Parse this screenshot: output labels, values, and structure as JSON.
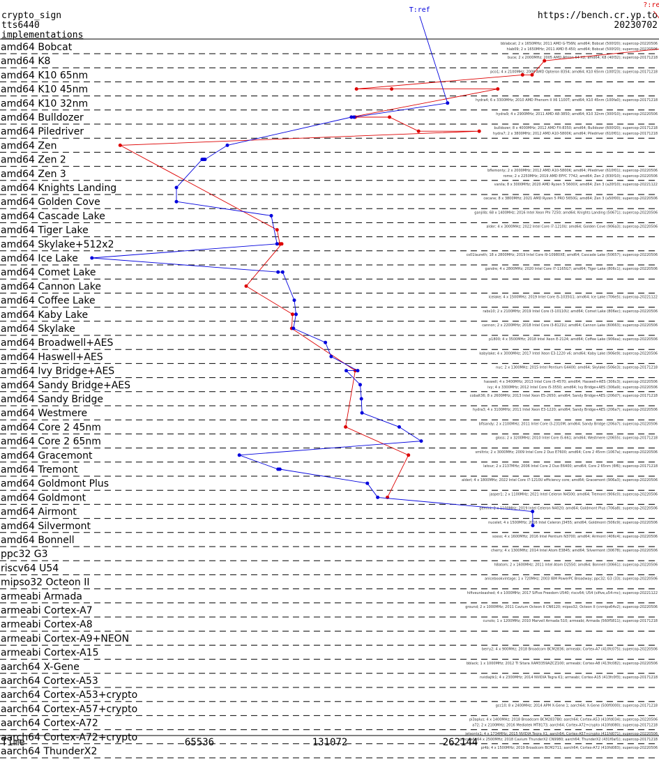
{
  "header": {
    "line1": "crypto_sign",
    "line2": "tts6440",
    "line3": "implementations",
    "url": "https://bench.cr.yp.to",
    "date": "20230702"
  },
  "colors": {
    "series_blue": "#0000dd",
    "series_red": "#dd0000",
    "separator": "#000000"
  },
  "chart_data": {
    "type": "line",
    "scale": "log2",
    "xlabel": "Time",
    "xticks": [
      65536,
      131072,
      262144
    ],
    "xtick_labels": [
      "65536",
      "131072",
      "262144"
    ],
    "grid": false,
    "series": [
      {
        "name": "T:ref",
        "color": "#0000dd"
      },
      {
        "name": "?:ref",
        "color": "#dd0000"
      }
    ],
    "categories": [
      "amd64 Bobcat",
      "amd64 K8",
      "amd64 K10 65nm",
      "amd64 K10 45nm",
      "amd64 K10 32nm",
      "amd64 Bulldozer",
      "amd64 Piledriver",
      "amd64 Zen",
      "amd64 Zen 2",
      "amd64 Zen 3",
      "amd64 Knights Landing",
      "amd64 Golden Cove",
      "amd64 Cascade Lake",
      "amd64 Tiger Lake",
      "amd64 Skylake+512x2",
      "amd64 Ice Lake",
      "amd64 Comet Lake",
      "amd64 Cannon Lake",
      "amd64 Coffee Lake",
      "amd64 Kaby Lake",
      "amd64 Skylake",
      "amd64 Broadwell+AES",
      "amd64 Haswell+AES",
      "amd64 Ivy Bridge+AES",
      "amd64 Sandy Bridge+AES",
      "amd64 Sandy Bridge",
      "amd64 Westmere",
      "amd64 Core 2 45nm",
      "amd64 Core 2 65nm",
      "amd64 Gracemont",
      "amd64 Tremont",
      "amd64 Goldmont Plus",
      "amd64 Goldmont",
      "amd64 Airmont",
      "amd64 Silvermont",
      "amd64 Bonnell",
      "ppc32 G3",
      "riscv64 U54",
      "mipso32 Octeon II",
      "armeabi Armada",
      "armeabi Cortex-A7",
      "armeabi Cortex-A8",
      "armeabi Cortex-A9+NEON",
      "armeabi Cortex-A15",
      "aarch64 X-Gene",
      "aarch64 Cortex-A53",
      "aarch64 Cortex-A53+crypto",
      "aarch64 Cortex-A57+crypto",
      "aarch64 Cortex-A72",
      "aarch64 Cortex-A72+crypto",
      "aarch64 ThunderX2"
    ],
    "blue_points": [
      {
        "row": 4,
        "x": 245000
      },
      {
        "row": 5,
        "x": 149000
      },
      {
        "row": 5,
        "x": 147000
      },
      {
        "row": 7,
        "x": 76000
      },
      {
        "row": 8,
        "x": 67500
      },
      {
        "row": 8,
        "x": 67000
      },
      {
        "row": 8,
        "x": 66500
      },
      {
        "row": 10,
        "x": 58000
      },
      {
        "row": 11,
        "x": 58000
      },
      {
        "row": 12,
        "x": 96000
      },
      {
        "row": 14,
        "x": 99000
      },
      {
        "row": 15,
        "x": 37000
      },
      {
        "row": 16,
        "x": 99500
      },
      {
        "row": 16,
        "x": 102000
      },
      {
        "row": 18,
        "x": 108500
      },
      {
        "row": 19,
        "x": 109500
      },
      {
        "row": 20,
        "x": 108000
      },
      {
        "row": 21,
        "x": 128000
      },
      {
        "row": 22,
        "x": 132000
      },
      {
        "row": 23,
        "x": 152000
      },
      {
        "row": 23,
        "x": 143000
      },
      {
        "row": 24,
        "x": 154000
      },
      {
        "row": 25,
        "x": 155000
      },
      {
        "row": 26,
        "x": 155500
      },
      {
        "row": 27,
        "x": 189500
      },
      {
        "row": 28,
        "x": 213000
      },
      {
        "row": 29,
        "x": 81000
      },
      {
        "row": 30,
        "x": 99500
      },
      {
        "row": 30,
        "x": 100500
      },
      {
        "row": 31,
        "x": 160000
      },
      {
        "row": 32,
        "x": 169000
      },
      {
        "row": 33,
        "x": 385000
      },
      {
        "row": 34,
        "x": 385500
      }
    ],
    "red_points": [
      {
        "row": 0,
        "x": 850000
      },
      {
        "row": 1,
        "x": 410000
      },
      {
        "row": 2,
        "x": 384000
      },
      {
        "row": 2,
        "x": 365000
      },
      {
        "row": 3,
        "x": 151000
      },
      {
        "row": 3,
        "x": 182000
      },
      {
        "row": 3,
        "x": 320000
      },
      {
        "row": 5,
        "x": 147000
      },
      {
        "row": 5,
        "x": 150000
      },
      {
        "row": 5,
        "x": 180000
      },
      {
        "row": 6,
        "x": 210000
      },
      {
        "row": 6,
        "x": 290000
      },
      {
        "row": 7,
        "x": 43000
      },
      {
        "row": 13,
        "x": 99000
      },
      {
        "row": 14,
        "x": 100500
      },
      {
        "row": 14,
        "x": 101500
      },
      {
        "row": 17,
        "x": 84000
      },
      {
        "row": 19,
        "x": 107500
      },
      {
        "row": 20,
        "x": 107000
      },
      {
        "row": 23,
        "x": 150000
      },
      {
        "row": 27,
        "x": 142500
      },
      {
        "row": 29,
        "x": 199000
      },
      {
        "row": 32,
        "x": 178000
      }
    ]
  },
  "machine_notes": [
    "bblabcat; 2 x 1650MHz; 2011 AMD G-T56N; amd64; Bobcat (500f20); supercop-20220506",
    "hlab09; 2 x 1650MHz; 2011 AMD E-450; amd64; Bobcat (500f20); supercop-20220506",
    "buce; 2 x 2000MHz; 2005 AMD Athlon 64 X2; amd64; K8 (40f32); supercop-20171218",
    "pco1; 4 x 2100MHz; 2008 AMD Opteron 8354; amd64; K10 65nm (100f23); supercop-20171218",
    "hydra4; 6 x 3300MHz; 2010 AMD Phenom II X6 1100T; amd64; K10 45nm (100fa0); supercop-20171218",
    "hydra9; 4 x 2900MHz; 2011 AMD A8-3850; amd64; K10 32nm (300f10); supercop-20220506",
    "bulldozer; 8 x 4000MHz; 2012 AMD FX-8350; amd64; Bulldozer (600f20); supercop-20171218",
    "hydra7; 2 x 3800MHz; 2012 AMD A10-5800K; amd64; Piledriver (610f01); supercop-20171218",
    "bflemonty; 2 x 2000MHz; 2012 AMD A10-5800K; amd64; Piledriver (610f01); supercop-20220506",
    "rome; 2 x 2250MHz; 2019 AMD EPYC 7742; amd64; Zen 2 (830f10); supercop-20220506",
    "vanila; 8 x 3000MHz; 2020 AMD Ryzen 5 5600X; amd64; Zen 3 (a20f10); supercop-20221122",
    "cecane; 8 x 3800MHz; 2021 AMD Ryzen 5 PRO 5650G; amd64; Zen 3 (a50f00); supercop-20220506",
    "ganjilib; 68 x 1400MHz; 2016 Intel Xeon Phi 7250; amd64; Knights Landing (50671); supercop-20220506",
    "alder; 4 x 3000MHz; 2022 Intel Core i7-1210U; amd64; Golden Cove (906a3); supercop-20220506",
    "cs01laureth; 18 x 2800MHz; 2019 Intel Core i9-10980XE; amd64; Cascade Lake (50657); supercop-20220506",
    "gandre; 4 x 2800MHz; 2020 Intel Core i7-1165G7; amd64; Tiger Lake (806c1); supercop-20220506",
    "icelake; 4 x 1500MHz; 2019 Intel Core i5-1035G1; amd64; Ice Lake (706e5); supercop-20221122",
    "rabs10; 2 x 2100MHz; 2019 Intel Core i3-10110U; amd64; Comet Lake (806ec); supercop-20220506",
    "cannon; 2 x 2200MHz; 2018 Intel Core i3-8121U; amd64; Cannon Lake (60663); supercop-20220506",
    "p1800; 4 x 3500MHz; 2018 Intel Xeon E-2124; amd64; Coffee Lake (906ea); supercop-20220506",
    "kabylake; 4 x 3000MHz; 2017 Intel Xeon E3-1220 v6; amd64; Kaby Lake (906e9); supercop-20220506",
    "nuc; 2 x 1300MHz; 2015 Intel Pentium G4400; amd64; Skylake (506e3); supercop-20171218",
    "haswell; 4 x 3400MHz; 2013 Intel Core i5-4570; amd64; Haswell+AES (306c3); supercop-20220506",
    "ivy; 4 x 3300MHz; 2012 Intel Core i5-3550; amd64; Ivy Bridge+AES (306a9); supercop-20220506",
    "cobalt36; 8 x 2600MHz; 2013 Intel Xeon E5-2650; amd64; Sandy Bridge+AES (206d7); supercop-20171218",
    "hydra3; 4 x 3100MHz; 2011 Intel Xeon E3-1220; amd64; Sandy Bridge+AES (206a7); supercop-20220506",
    "bflsandy; 2 x 2100MHz; 2011 Intel Core i3-2310M; amd64; Sandy Bridge (206a7); supercop-20220506",
    "gloss; 2 x 3200MHz; 2010 Intel Core i5-661; amd64; Westmere (20655); supercop-20171218",
    "smiltrix; 2 x 3000MHz; 2009 Intel Core 2 Duo E7600; amd64; Core 2 45nm (1067a); supercop-20220506",
    "latour; 2 x 2137MHz; 2006 Intel Core 2 Duo E6400; amd64; Core 2 65nm (6f6); supercop-20171218",
    "alderl; 4 x 1800MHz; 2022 Intel Core i7-1210U efficiency core; amd64; Gracemont (906a3); supercop-20220506",
    "jasper1; 2 x 1100MHz; 2021 Intel Celeron N4500; amd64; Tremont (906c0); supercop-20220506",
    "gemini; 2 x 1100MHz; 2019 Intel Celeron N4020; amd64; Goldmont Plus (706a8); supercop-20220506",
    "nucelet; 4 x 1500MHz; 2016 Intel Celeron J3455; amd64; Goldmont (506c9); supercop-20220506",
    "sosso; 4 x 1600MHz; 2016 Intel Pentium N3700; amd64; Airmont (406c4); supercop-20220506",
    "cherry; 4 x 1300MHz; 2014 Intel Atom E3845; amd64; Silvermont (30678); supercop-20220506",
    "h8atom; 2 x 1600MHz; 2011 Intel Atom D2550; amd64; Bonnell (30661); supercop-20220506",
    "anicebookvintage; 1 x 720MHz; 2003 IBM PowerPC Broadway; ppc32; G3 (33); supercop-20220506",
    "hifiveunleashed; 4 x 1000MHz; 2017 SiFive Freedom U540; riscv64; U54 (sifive,u54-mc); supercop-20221122",
    "ground; 2 x 1000MHz; 2011 Cavium Octeon II CN6120; mipso32; Octeon II (cnmips64v2); supercop-20220506",
    "cunolo; 1 x 1200MHz; 2010 Marvell Armada 510; armeabi; Armada (560f5811); supercop-20171218",
    "berry2; 4 x 900MHz; 2018 Broadcom BCM2836; armeabi; Cortex-A7 (410fc075); supercop-20220506",
    "bblack; 1 x 1000MHz; 2012 TI Sitara XAM3359AZCZ100; armeabi; Cortex-A8 (413fc082); supercop-20220506",
    "nvidiajtk1; 4 x 2300MHz; 2014 NVIDIA Tegra K1; armeabi; Cortex-A15 (413fc0f3); supercop-20171218",
    "gcc10; 8 x 2400MHz; 2014 APM X-Gene 1; aarch64; X-Gene (500f0000); supercop-20171218",
    "pi3aplus; 4 x 1400MHz; 2018 Broadcom BCM2837B0; aarch64; Cortex-A53 (410fd034); supercop-20220506",
    "jetsontx1; 4 x 1734MHz; 2015 NVIDIA Tegra X1; aarch64; Cortex-A57+crypto (411fd071); supercop-20220506",
    "pi4b; 4 x 1500MHz; 2019 Broadcom BCM2711; aarch64; Cortex-A72 (410fd083); supercop-20220506",
    "a72; 2 x 2100MHz; 2016 Mediatek MT8173; aarch64; Cortex-A72+crypto (410fd080); supercop-20171218",
    "pmcsta6; 64 x 2500MHz; 2018 Cavium ThunderX2 CN9980; aarch64; ThunderX2 (431f0af1); supercop-20171218"
  ]
}
